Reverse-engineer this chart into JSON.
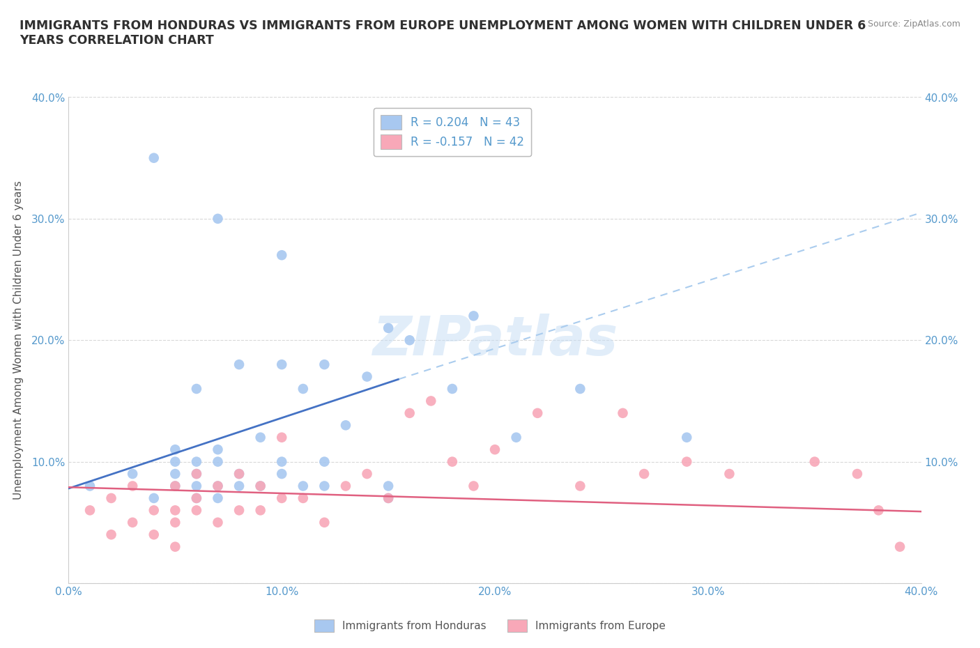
{
  "title": "IMMIGRANTS FROM HONDURAS VS IMMIGRANTS FROM EUROPE UNEMPLOYMENT AMONG WOMEN WITH CHILDREN UNDER 6\nYEARS CORRELATION CHART",
  "source_text": "Source: ZipAtlas.com",
  "ylabel": "Unemployment Among Women with Children Under 6 years",
  "xlabel": "",
  "xlim": [
    0.0,
    0.4
  ],
  "ylim": [
    0.0,
    0.4
  ],
  "xticks": [
    0.0,
    0.1,
    0.2,
    0.3,
    0.4
  ],
  "yticks": [
    0.0,
    0.1,
    0.2,
    0.3,
    0.4
  ],
  "xticklabels": [
    "0.0%",
    "10.0%",
    "20.0%",
    "30.0%",
    "40.0%"
  ],
  "yticklabels": [
    "",
    "10.0%",
    "20.0%",
    "30.0%",
    "40.0%"
  ],
  "right_yticklabels": [
    "",
    "10.0%",
    "20.0%",
    "30.0%",
    "40.0%"
  ],
  "watermark_text": "ZIPatlas",
  "legend1_label": "R = 0.204   N = 43",
  "legend2_label": "R = -0.157   N = 42",
  "bottom_legend1": "Immigrants from Honduras",
  "bottom_legend2": "Immigrants from Europe",
  "color_honduras": "#a8c8f0",
  "color_europe": "#f8a8b8",
  "line_color_honduras": "#4472c4",
  "line_color_europe": "#e06080",
  "background_color": "#ffffff",
  "grid_color": "#d8d8d8",
  "title_color": "#303030",
  "tick_color": "#5599cc",
  "honduras_x": [
    0.01,
    0.03,
    0.04,
    0.04,
    0.05,
    0.05,
    0.05,
    0.05,
    0.06,
    0.06,
    0.06,
    0.06,
    0.06,
    0.07,
    0.07,
    0.07,
    0.07,
    0.07,
    0.08,
    0.08,
    0.08,
    0.09,
    0.09,
    0.1,
    0.1,
    0.1,
    0.1,
    0.11,
    0.11,
    0.12,
    0.12,
    0.12,
    0.13,
    0.14,
    0.15,
    0.15,
    0.15,
    0.16,
    0.18,
    0.19,
    0.21,
    0.24,
    0.29
  ],
  "honduras_y": [
    0.08,
    0.09,
    0.07,
    0.35,
    0.08,
    0.09,
    0.1,
    0.11,
    0.07,
    0.08,
    0.09,
    0.1,
    0.16,
    0.07,
    0.08,
    0.1,
    0.11,
    0.3,
    0.08,
    0.09,
    0.18,
    0.08,
    0.12,
    0.09,
    0.1,
    0.18,
    0.27,
    0.08,
    0.16,
    0.08,
    0.1,
    0.18,
    0.13,
    0.17,
    0.07,
    0.08,
    0.21,
    0.2,
    0.16,
    0.22,
    0.12,
    0.16,
    0.12
  ],
  "europe_x": [
    0.01,
    0.02,
    0.02,
    0.03,
    0.03,
    0.04,
    0.04,
    0.05,
    0.05,
    0.05,
    0.05,
    0.06,
    0.06,
    0.06,
    0.07,
    0.07,
    0.08,
    0.08,
    0.09,
    0.09,
    0.1,
    0.1,
    0.11,
    0.12,
    0.13,
    0.14,
    0.15,
    0.16,
    0.17,
    0.18,
    0.19,
    0.2,
    0.22,
    0.24,
    0.26,
    0.27,
    0.29,
    0.31,
    0.35,
    0.37,
    0.38,
    0.39
  ],
  "europe_y": [
    0.06,
    0.04,
    0.07,
    0.05,
    0.08,
    0.04,
    0.06,
    0.05,
    0.06,
    0.08,
    0.03,
    0.06,
    0.07,
    0.09,
    0.05,
    0.08,
    0.06,
    0.09,
    0.06,
    0.08,
    0.07,
    0.12,
    0.07,
    0.05,
    0.08,
    0.09,
    0.07,
    0.14,
    0.15,
    0.1,
    0.08,
    0.11,
    0.14,
    0.08,
    0.14,
    0.09,
    0.1,
    0.09,
    0.1,
    0.09,
    0.06,
    0.03
  ],
  "hline_x0": 0.0,
  "hline_x1": 0.155,
  "hline_y0": 0.078,
  "hline_y1": 0.168,
  "hline_dash_x0": 0.155,
  "hline_dash_x1": 0.4,
  "hline_dash_y0": 0.168,
  "hline_dash_y1": 0.305,
  "eline_x0": 0.0,
  "eline_x1": 0.4,
  "eline_y0": 0.079,
  "eline_y1": 0.059
}
